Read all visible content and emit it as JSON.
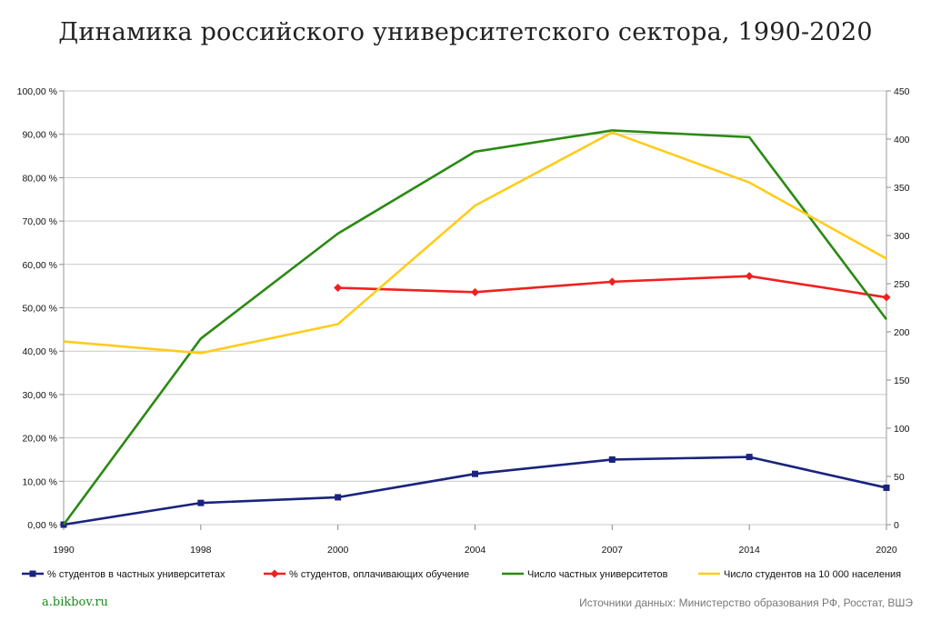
{
  "title": "Динамика российского университетского сектора, 1990-2020",
  "footer": {
    "site": "a.bikbov.ru",
    "sources": "Источники данных: Министерство образования РФ, Росстат, ВШЭ"
  },
  "chart_data": {
    "type": "line",
    "categories": [
      "1990",
      "1998",
      "2000",
      "2004",
      "2007",
      "2014",
      "2020"
    ],
    "y_left": {
      "ylim": [
        0,
        100
      ],
      "ticks": [
        0,
        10,
        20,
        30,
        40,
        50,
        60,
        70,
        80,
        90,
        100
      ],
      "tick_labels": [
        "0,00 %",
        "10,00 %",
        "20,00 %",
        "30,00 %",
        "40,00 %",
        "50,00 %",
        "60,00 %",
        "70,00 %",
        "80,00 %",
        "90,00 %",
        "100,00 %"
      ]
    },
    "y_right": {
      "ylim": [
        0,
        450
      ],
      "ticks": [
        0,
        50,
        100,
        150,
        200,
        250,
        300,
        350,
        400,
        450
      ],
      "tick_labels": [
        "0",
        "50",
        "100",
        "150",
        "200",
        "250",
        "300",
        "350",
        "400",
        "450"
      ]
    },
    "grid": true,
    "legend_position": "bottom",
    "series": [
      {
        "name": "% студентов в частных университетах",
        "axis": "left",
        "color": "#1a237e",
        "marker": "square",
        "values": [
          0,
          5,
          6.3,
          11.7,
          15,
          15.6,
          8.5
        ]
      },
      {
        "name": "% студентов, оплачивающих обучение",
        "axis": "left",
        "color": "#f02020",
        "marker": "diamond",
        "values": [
          null,
          null,
          54.6,
          53.6,
          56,
          57.3,
          52.4
        ]
      },
      {
        "name": "Число частных университетов",
        "axis": "right",
        "color": "#2a8a12",
        "marker": "none",
        "values": [
          0,
          193,
          302,
          387,
          409,
          402,
          213
        ]
      },
      {
        "name": "Число студентов на 10 000 населения",
        "axis": "right",
        "color": "#ffcc1a",
        "marker": "none",
        "values": [
          190,
          178,
          208,
          331,
          407,
          355,
          276
        ]
      }
    ]
  }
}
